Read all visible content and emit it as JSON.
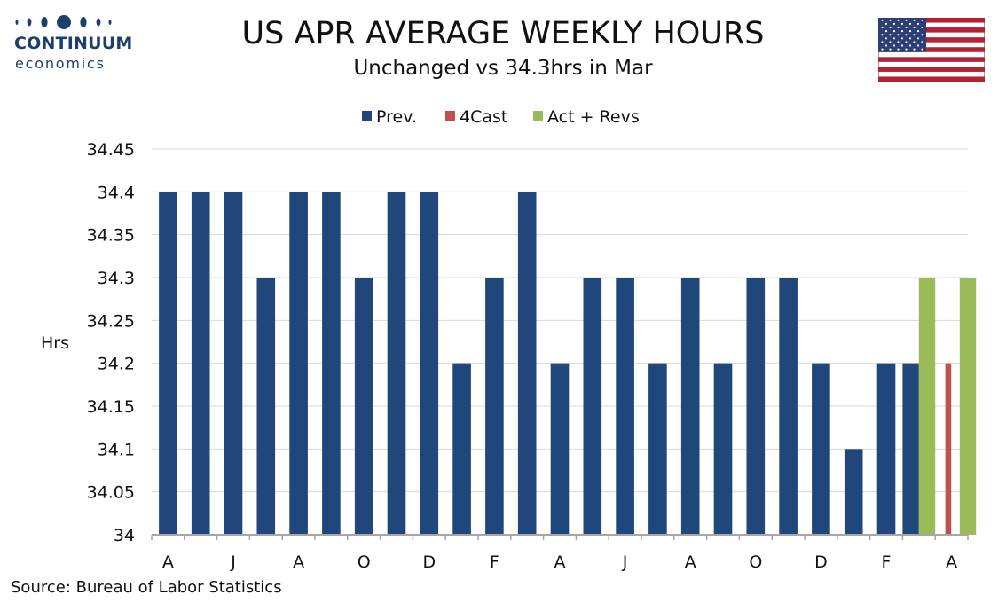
{
  "branding": {
    "logo_name": "CONTINUUM",
    "logo_sub": "economics",
    "flag_icon": "us-flag-icon"
  },
  "header": {
    "title": "US APR AVERAGE WEEKLY HOURS",
    "subtitle": "Unchanged vs 34.3hrs in Mar"
  },
  "footer": {
    "source": "Source: Bureau of Labor Statistics"
  },
  "colors": {
    "prev": "#1f477b",
    "forecast": "#c0504d",
    "actual": "#9bbb59",
    "grid": "#d9d9d9",
    "axis": "#a6a6a6",
    "logo": "#1e3f6e"
  },
  "chart_data": {
    "type": "bar",
    "ylabel": "Hrs",
    "ylim": [
      34,
      34.45
    ],
    "yticks": [
      "34",
      "34.05",
      "34.1",
      "34.15",
      "34.2",
      "34.25",
      "34.3",
      "34.35",
      "34.4",
      "34.45"
    ],
    "grid": true,
    "legend_position": "top-center",
    "x_tick_labels": [
      "A",
      "J",
      "A",
      "O",
      "D",
      "F",
      "A",
      "J",
      "A",
      "O",
      "D",
      "F",
      "A"
    ],
    "series": [
      {
        "name": "Prev.",
        "values": [
          34.4,
          34.4,
          34.4,
          34.3,
          34.4,
          34.4,
          34.3,
          34.4,
          34.4,
          34.2,
          34.3,
          34.4,
          34.2,
          34.3,
          34.3,
          34.2,
          34.3,
          34.2,
          34.3,
          34.3,
          34.2,
          34.1,
          34.2,
          34.2,
          null
        ]
      },
      {
        "name": "4Cast",
        "values": [
          null,
          null,
          null,
          null,
          null,
          null,
          null,
          null,
          null,
          null,
          null,
          null,
          null,
          null,
          null,
          null,
          null,
          null,
          null,
          null,
          null,
          null,
          null,
          null,
          34.2
        ]
      },
      {
        "name": "Act + Revs",
        "values": [
          null,
          null,
          null,
          null,
          null,
          null,
          null,
          null,
          null,
          null,
          null,
          null,
          null,
          null,
          null,
          null,
          null,
          null,
          null,
          null,
          null,
          null,
          null,
          34.3,
          34.3
        ]
      }
    ]
  }
}
